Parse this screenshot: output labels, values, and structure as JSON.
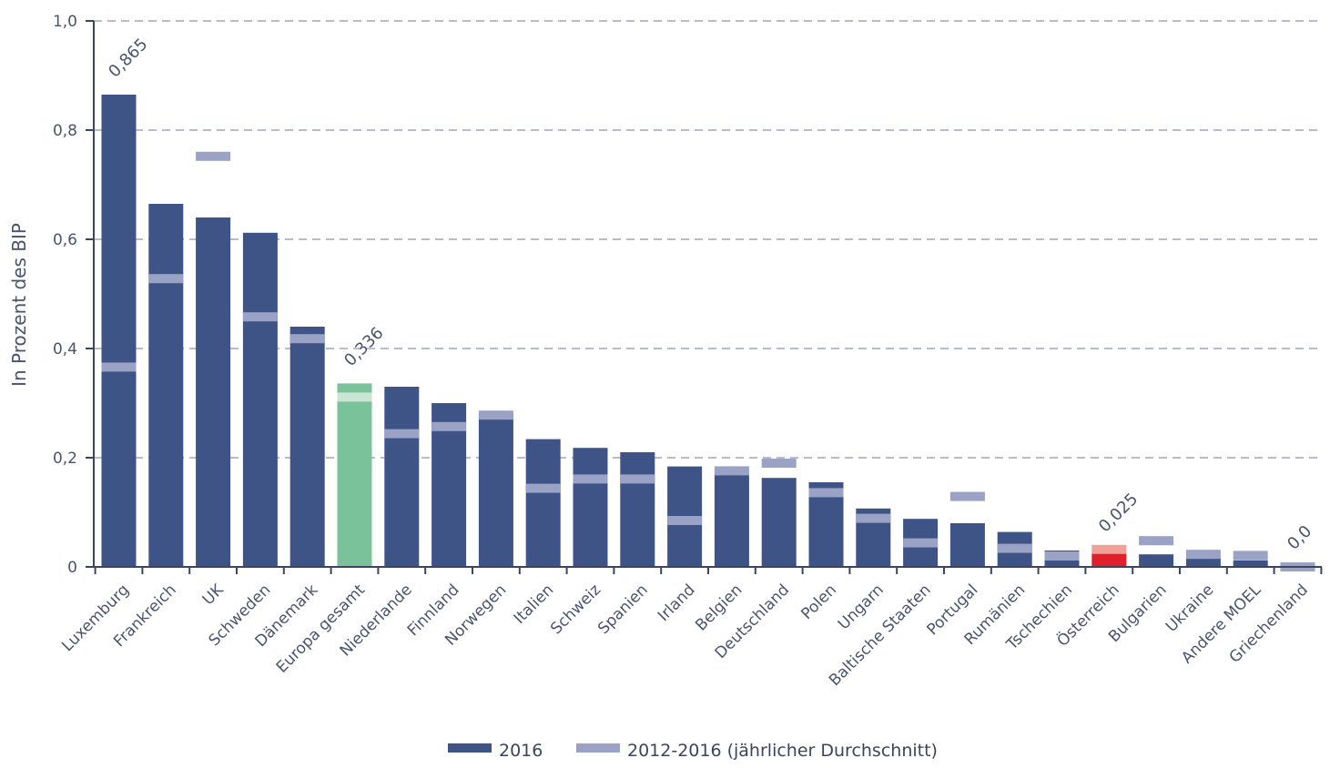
{
  "chart_data": {
    "type": "bar",
    "ylabel": "In Prozent des BIP",
    "ylim": [
      0,
      1.0
    ],
    "yticks": [
      "0",
      "0,2",
      "0,4",
      "0,6",
      "0,8",
      "1,0"
    ],
    "grid": true,
    "legend_position": "bottom",
    "categories": [
      "Luxemburg",
      "Frankreich",
      "UK",
      "Schweden",
      "Dänemark",
      "Europa gesamt",
      "Niederlande",
      "Finnland",
      "Norwegen",
      "Italien",
      "Schweiz",
      "Spanien",
      "Irland",
      "Belgien",
      "Deutschland",
      "Polen",
      "Ungarn",
      "Baltische Staaten",
      "Portugal",
      "Rumänien",
      "Tschechien",
      "Österreich",
      "Bulgarien",
      "Ukraine",
      "Andere MOEL",
      "Griechenland"
    ],
    "series": [
      {
        "name": "2016",
        "values": [
          0.865,
          0.665,
          0.64,
          0.612,
          0.44,
          0.336,
          0.33,
          0.3,
          0.28,
          0.234,
          0.218,
          0.21,
          0.184,
          0.17,
          0.163,
          0.155,
          0.107,
          0.088,
          0.08,
          0.064,
          0.03,
          0.025,
          0.023,
          0.015,
          0.012,
          0.0
        ]
      },
      {
        "name": "2012-2016 (jährlicher Durchschnitt)",
        "values": [
          0.366,
          0.528,
          0.752,
          0.458,
          0.418,
          0.311,
          0.244,
          0.257,
          0.278,
          0.144,
          0.161,
          0.161,
          0.085,
          0.176,
          0.19,
          0.136,
          0.089,
          0.044,
          0.129,
          0.034,
          0.02,
          0.032,
          0.048,
          0.023,
          0.021,
          0.0
        ]
      }
    ],
    "annotations": [
      {
        "category": "Luxemburg",
        "text": "0,865"
      },
      {
        "category": "Europa gesamt",
        "text": "0,336"
      },
      {
        "category": "Österreich",
        "text": "0,025"
      },
      {
        "category": "Griechenland",
        "text": "0,0"
      }
    ],
    "highlights": {
      "Europa gesamt": {
        "bar": "#79c29a",
        "avg": "#c9e6d4"
      },
      "Österreich": {
        "bar": "#e2202c",
        "avg": "#f0a095",
        "label_color": "#111111"
      }
    },
    "colors": {
      "bar": "#3f5486",
      "avg": "#9aa2c5",
      "grid": "#8a93ad",
      "axis": "#3c4560"
    }
  }
}
